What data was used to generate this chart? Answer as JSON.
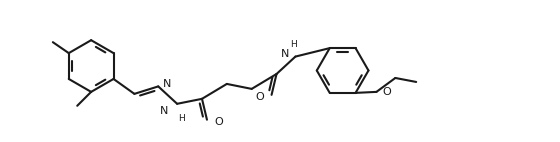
{
  "line_color": "#1a1a1a",
  "bg_color": "#ffffff",
  "lw": 1.5,
  "figsize": [
    5.6,
    1.42
  ],
  "dpi": 100,
  "xlim": [
    -0.5,
    10.5
  ],
  "ylim": [
    -1.4,
    1.4
  ]
}
